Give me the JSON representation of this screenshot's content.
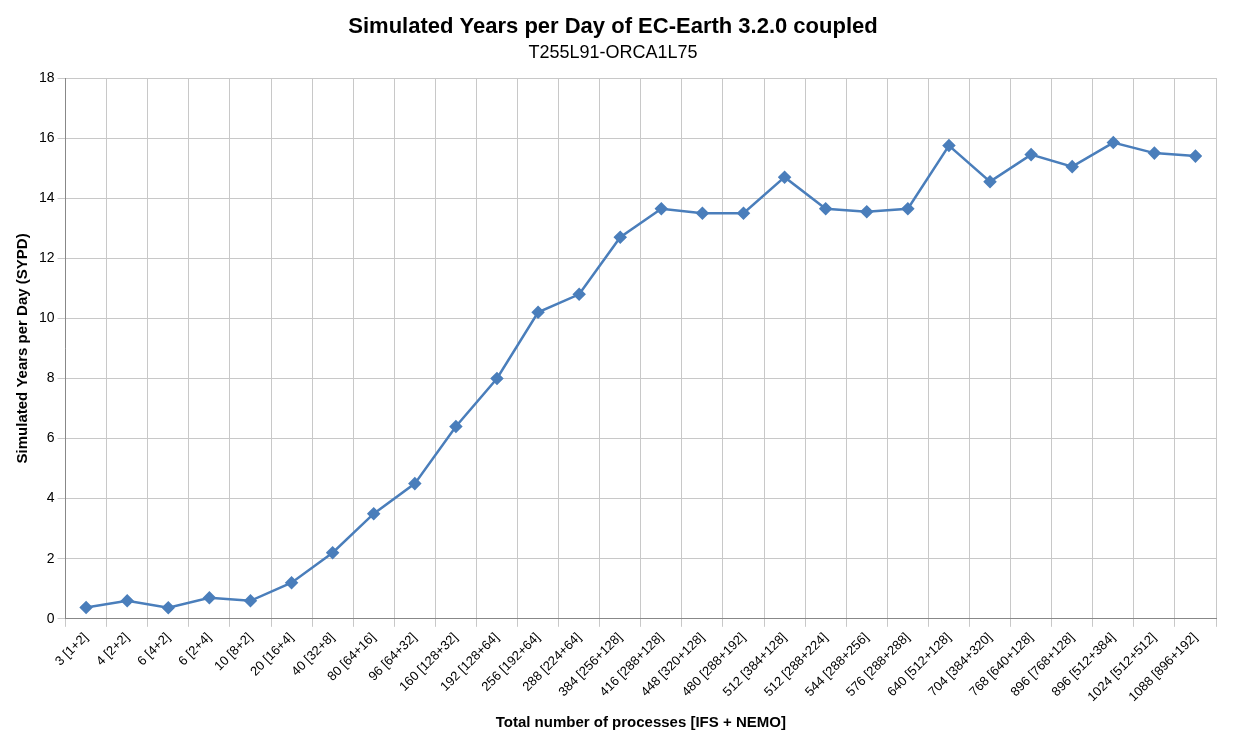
{
  "chart_data": {
    "type": "line",
    "title": "Simulated Years per Day of EC-Earth 3.2.0 coupled",
    "subtitle": "T255L91-ORCA1L75",
    "x_label": "Total number of processes [IFS + NEMO]",
    "y_label": "Simulated Years per Day (SYPD)",
    "categories": [
      "3 [1+2]",
      "4 [2+2]",
      "6 [4+2]",
      "6 [2+4]",
      "10 [8+2]",
      "20 [16+4]",
      "40 [32+8]",
      "80 [64+16]",
      "96 [64+32]",
      "160 [128+32]",
      "192 [128+64]",
      "256 [192+64]",
      "288 [224+64]",
      "384 [256+128]",
      "416 [288+128]",
      "448 [320+128]",
      "480 [288+192]",
      "512 [384+128]",
      "512 [288+224]",
      "544 [288+256]",
      "576 [288+288]",
      "640 [512+128]",
      "704 [384+320]",
      "768 [640+128]",
      "896 [768+128]",
      "896 [512+384]",
      "1024 [512+512]",
      "1088 [896+192]"
    ],
    "values": [
      0.38,
      0.6,
      0.37,
      0.7,
      0.6,
      1.2,
      2.2,
      3.5,
      4.5,
      6.4,
      8.0,
      10.2,
      10.8,
      12.7,
      13.65,
      13.5,
      13.5,
      14.7,
      13.65,
      13.55,
      13.65,
      15.75,
      14.55,
      15.45,
      15.05,
      15.85,
      15.5,
      15.4
    ],
    "color": "#4a7ebb",
    "marker": "diamond",
    "line_style": "solid",
    "ylim": [
      0,
      18
    ],
    "yticks": [
      0,
      2,
      4,
      6,
      8,
      10,
      12,
      14,
      16,
      18
    ],
    "grid": true
  }
}
